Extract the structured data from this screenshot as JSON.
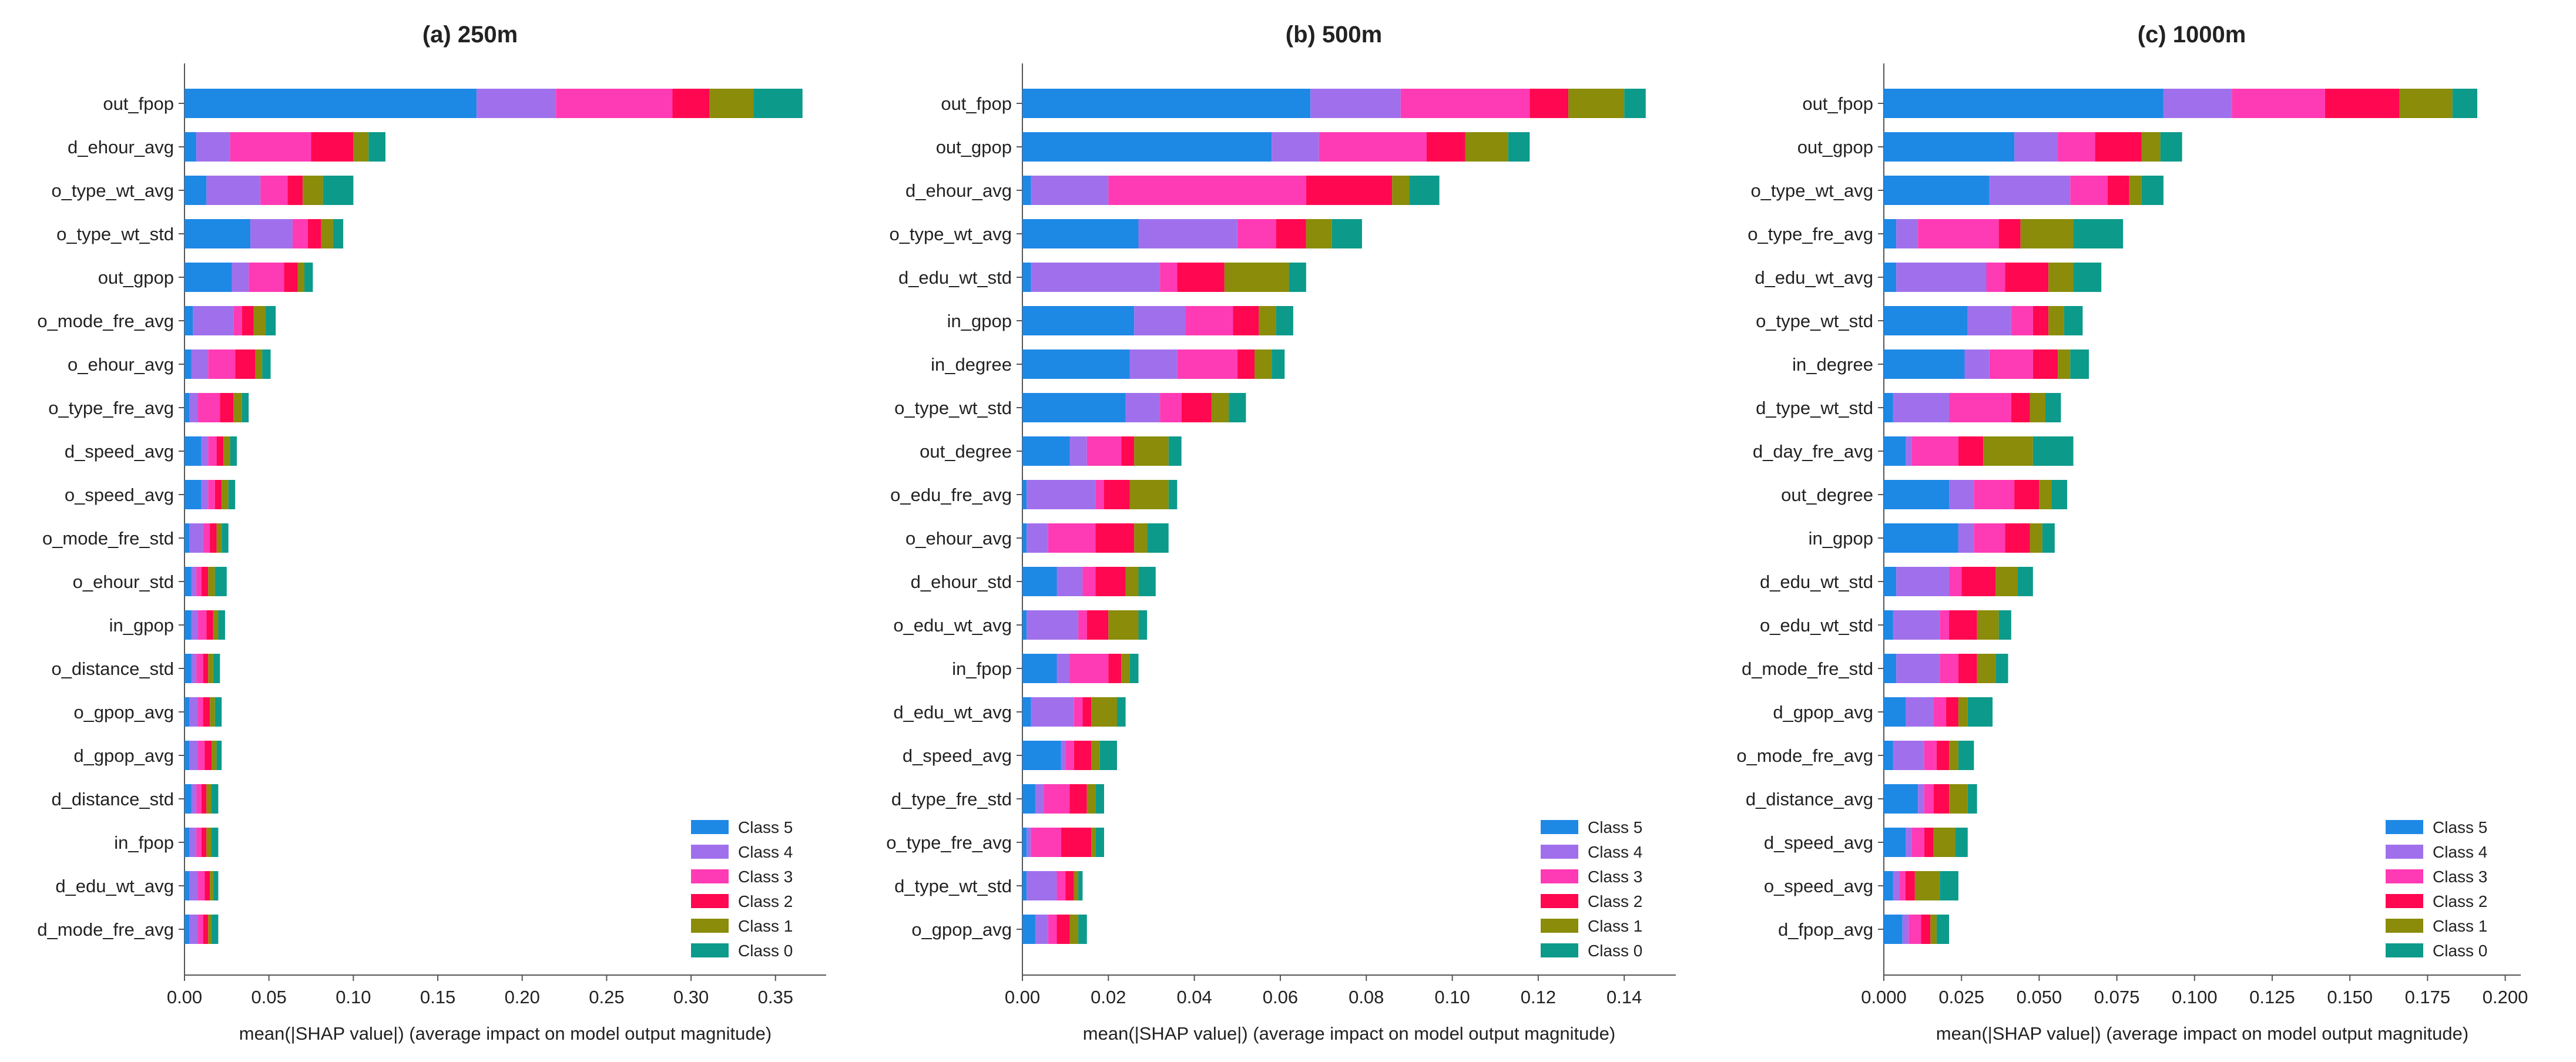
{
  "colors": {
    "Class 5": "#1E88E5",
    "Class 4": "#A070EC",
    "Class 3": "#FF3AB5",
    "Class 2": "#FF0751",
    "Class 1": "#8A8C0A",
    "Class 0": "#0C9A8B"
  },
  "chart_data": [
    {
      "type": "bar",
      "orientation": "horizontal-stacked",
      "title": "(a) 250m",
      "xlabel": "mean(|SHAP value|) (average impact on model output magnitude)",
      "ylabel": "",
      "xlim": [
        0,
        0.38
      ],
      "xticks": [
        0.0,
        0.05,
        0.1,
        0.15,
        0.2,
        0.25,
        0.3,
        0.35
      ],
      "xtick_labels": [
        "0.00",
        "0.05",
        "0.10",
        "0.15",
        "0.20",
        "0.25",
        "0.30",
        "0.35"
      ],
      "legend": [
        "Class 5",
        "Class 4",
        "Class 3",
        "Class 2",
        "Class 1",
        "Class 0"
      ],
      "legend_position": "bottom-right",
      "categories": [
        "out_fpop",
        "d_ehour_avg",
        "o_type_wt_avg",
        "o_type_wt_std",
        "out_gpop",
        "o_mode_fre_avg",
        "o_ehour_avg",
        "o_type_fre_avg",
        "d_speed_avg",
        "o_speed_avg",
        "o_mode_fre_std",
        "o_ehour_std",
        "in_gpop",
        "o_distance_std",
        "o_gpop_avg",
        "d_gpop_avg",
        "d_distance_std",
        "in_fpop",
        "d_edu_wt_avg",
        "d_mode_fre_avg"
      ],
      "series": [
        {
          "name": "Class 5",
          "values": [
            0.173,
            0.007,
            0.013,
            0.039,
            0.028,
            0.005,
            0.004,
            0.003,
            0.01,
            0.01,
            0.003,
            0.004,
            0.004,
            0.004,
            0.003,
            0.003,
            0.004,
            0.003,
            0.003,
            0.003
          ]
        },
        {
          "name": "Class 4",
          "values": [
            0.047,
            0.02,
            0.032,
            0.025,
            0.01,
            0.024,
            0.01,
            0.005,
            0.004,
            0.004,
            0.008,
            0.003,
            0.004,
            0.003,
            0.005,
            0.005,
            0.003,
            0.004,
            0.005,
            0.005
          ]
        },
        {
          "name": "Class 3",
          "values": [
            0.069,
            0.048,
            0.016,
            0.009,
            0.021,
            0.005,
            0.016,
            0.013,
            0.005,
            0.004,
            0.004,
            0.003,
            0.005,
            0.004,
            0.003,
            0.004,
            0.003,
            0.003,
            0.004,
            0.003
          ]
        },
        {
          "name": "Class 2",
          "values": [
            0.022,
            0.025,
            0.009,
            0.008,
            0.008,
            0.007,
            0.012,
            0.008,
            0.004,
            0.004,
            0.004,
            0.004,
            0.004,
            0.003,
            0.004,
            0.004,
            0.003,
            0.003,
            0.003,
            0.003
          ]
        },
        {
          "name": "Class 1",
          "values": [
            0.026,
            0.009,
            0.012,
            0.007,
            0.004,
            0.007,
            0.004,
            0.005,
            0.004,
            0.004,
            0.003,
            0.004,
            0.003,
            0.003,
            0.003,
            0.003,
            0.003,
            0.003,
            0.002,
            0.002
          ]
        },
        {
          "name": "Class 0",
          "values": [
            0.029,
            0.01,
            0.018,
            0.006,
            0.005,
            0.006,
            0.005,
            0.004,
            0.004,
            0.004,
            0.004,
            0.007,
            0.004,
            0.004,
            0.004,
            0.003,
            0.004,
            0.004,
            0.003,
            0.004
          ]
        }
      ]
    },
    {
      "type": "bar",
      "orientation": "horizontal-stacked",
      "title": "(b) 500m",
      "xlabel": "mean(|SHAP value|) (average impact on model output magnitude)",
      "ylabel": "",
      "xlim": [
        0,
        0.152
      ],
      "xticks": [
        0.0,
        0.02,
        0.04,
        0.06,
        0.08,
        0.1,
        0.12,
        0.14
      ],
      "xtick_labels": [
        "0.00",
        "0.02",
        "0.04",
        "0.06",
        "0.08",
        "0.10",
        "0.12",
        "0.14"
      ],
      "legend": [
        "Class 5",
        "Class 4",
        "Class 3",
        "Class 2",
        "Class 1",
        "Class 0"
      ],
      "legend_position": "bottom-right",
      "categories": [
        "out_fpop",
        "out_gpop",
        "d_ehour_avg",
        "o_type_wt_avg",
        "d_edu_wt_std",
        "in_gpop",
        "in_degree",
        "o_type_wt_std",
        "out_degree",
        "o_edu_fre_avg",
        "o_ehour_avg",
        "d_ehour_std",
        "o_edu_wt_avg",
        "in_fpop",
        "d_edu_wt_avg",
        "d_speed_avg",
        "d_type_fre_std",
        "o_type_fre_avg",
        "d_type_wt_std",
        "o_gpop_avg"
      ],
      "series": [
        {
          "name": "Class 5",
          "values": [
            0.067,
            0.058,
            0.002,
            0.027,
            0.002,
            0.026,
            0.025,
            0.024,
            0.011,
            0.001,
            0.001,
            0.008,
            0.001,
            0.008,
            0.002,
            0.009,
            0.003,
            0.001,
            0.001,
            0.003
          ]
        },
        {
          "name": "Class 4",
          "values": [
            0.021,
            0.011,
            0.018,
            0.023,
            0.03,
            0.012,
            0.011,
            0.008,
            0.004,
            0.016,
            0.005,
            0.006,
            0.012,
            0.003,
            0.01,
            0.001,
            0.002,
            0.001,
            0.007,
            0.003
          ]
        },
        {
          "name": "Class 3",
          "values": [
            0.03,
            0.025,
            0.046,
            0.009,
            0.004,
            0.011,
            0.014,
            0.005,
            0.008,
            0.002,
            0.011,
            0.003,
            0.002,
            0.009,
            0.002,
            0.002,
            0.006,
            0.007,
            0.002,
            0.002
          ]
        },
        {
          "name": "Class 2",
          "values": [
            0.009,
            0.009,
            0.02,
            0.007,
            0.011,
            0.006,
            0.004,
            0.007,
            0.003,
            0.006,
            0.009,
            0.007,
            0.005,
            0.003,
            0.002,
            0.004,
            0.004,
            0.007,
            0.002,
            0.003
          ]
        },
        {
          "name": "Class 1",
          "values": [
            0.013,
            0.01,
            0.004,
            0.006,
            0.015,
            0.004,
            0.004,
            0.004,
            0.008,
            0.009,
            0.003,
            0.003,
            0.007,
            0.002,
            0.006,
            0.002,
            0.002,
            0.001,
            0.001,
            0.002
          ]
        },
        {
          "name": "Class 0",
          "values": [
            0.005,
            0.005,
            0.007,
            0.007,
            0.004,
            0.004,
            0.003,
            0.004,
            0.003,
            0.002,
            0.005,
            0.004,
            0.002,
            0.002,
            0.002,
            0.004,
            0.002,
            0.002,
            0.001,
            0.002
          ]
        }
      ]
    },
    {
      "type": "bar",
      "orientation": "horizontal-stacked",
      "title": "(c) 1000m",
      "xlabel": "mean(|SHAP value|) (average impact on model output magnitude)",
      "ylabel": "",
      "xlim": [
        0,
        0.205
      ],
      "xticks": [
        0.0,
        0.025,
        0.05,
        0.075,
        0.1,
        0.125,
        0.15,
        0.175,
        0.2
      ],
      "xtick_labels": [
        "0.000",
        "0.025",
        "0.050",
        "0.075",
        "0.100",
        "0.125",
        "0.150",
        "0.175",
        "0.200"
      ],
      "legend": [
        "Class 5",
        "Class 4",
        "Class 3",
        "Class 2",
        "Class 1",
        "Class 0"
      ],
      "legend_position": "bottom-right",
      "categories": [
        "out_fpop",
        "out_gpop",
        "o_type_wt_avg",
        "o_type_fre_avg",
        "d_edu_wt_avg",
        "o_type_wt_std",
        "in_degree",
        "d_type_wt_std",
        "d_day_fre_avg",
        "out_degree",
        "in_gpop",
        "d_edu_wt_std",
        "o_edu_wt_std",
        "d_mode_fre_std",
        "d_gpop_avg",
        "o_mode_fre_avg",
        "d_distance_avg",
        "d_speed_avg",
        "o_speed_avg",
        "d_fpop_avg"
      ],
      "series": [
        {
          "name": "Class 5",
          "values": [
            0.09,
            0.042,
            0.034,
            0.004,
            0.004,
            0.027,
            0.026,
            0.003,
            0.007,
            0.021,
            0.024,
            0.004,
            0.003,
            0.004,
            0.007,
            0.003,
            0.011,
            0.007,
            0.003,
            0.006
          ]
        },
        {
          "name": "Class 4",
          "values": [
            0.022,
            0.014,
            0.026,
            0.007,
            0.029,
            0.014,
            0.008,
            0.018,
            0.002,
            0.008,
            0.005,
            0.017,
            0.015,
            0.014,
            0.009,
            0.01,
            0.002,
            0.002,
            0.002,
            0.002
          ]
        },
        {
          "name": "Class 3",
          "values": [
            0.03,
            0.012,
            0.012,
            0.026,
            0.006,
            0.007,
            0.014,
            0.02,
            0.015,
            0.013,
            0.01,
            0.004,
            0.003,
            0.006,
            0.004,
            0.004,
            0.003,
            0.004,
            0.002,
            0.004
          ]
        },
        {
          "name": "Class 2",
          "values": [
            0.024,
            0.015,
            0.007,
            0.007,
            0.014,
            0.005,
            0.008,
            0.006,
            0.008,
            0.008,
            0.008,
            0.011,
            0.009,
            0.006,
            0.004,
            0.004,
            0.005,
            0.003,
            0.003,
            0.003
          ]
        },
        {
          "name": "Class 1",
          "values": [
            0.017,
            0.006,
            0.004,
            0.017,
            0.008,
            0.005,
            0.004,
            0.005,
            0.016,
            0.004,
            0.004,
            0.007,
            0.007,
            0.006,
            0.003,
            0.003,
            0.006,
            0.007,
            0.008,
            0.002
          ]
        },
        {
          "name": "Class 0",
          "values": [
            0.008,
            0.007,
            0.007,
            0.016,
            0.009,
            0.006,
            0.006,
            0.005,
            0.013,
            0.005,
            0.004,
            0.005,
            0.004,
            0.004,
            0.008,
            0.005,
            0.003,
            0.004,
            0.006,
            0.004
          ]
        }
      ]
    }
  ]
}
